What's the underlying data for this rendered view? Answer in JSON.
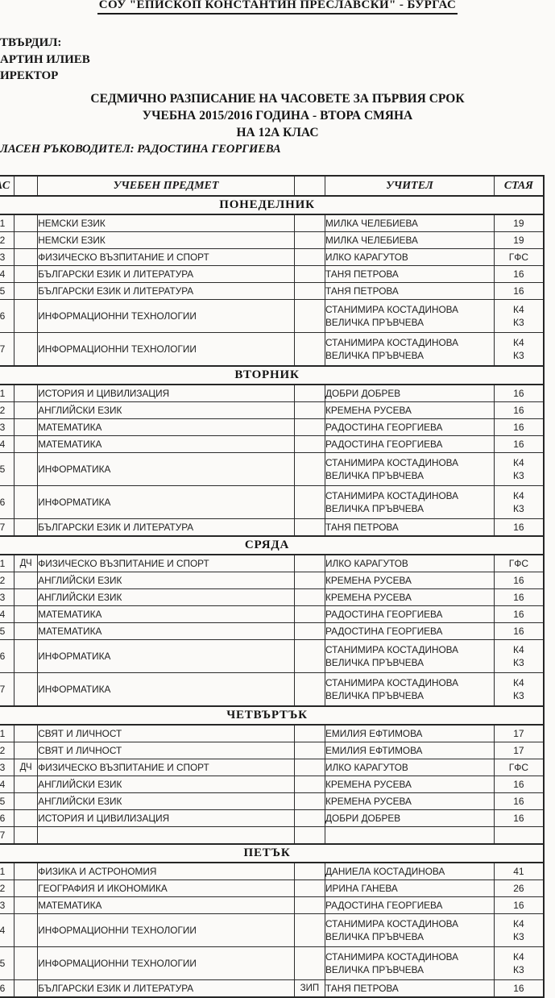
{
  "document": {
    "school_name": "СОУ \"ЕПИСКОП КОНСТАНТИН ПРЕСЛАВСКИ\" - БУРГАС",
    "approved_lines": [
      "ТВЪРДИЛ:",
      "АРТИН ИЛИЕВ",
      "ИРЕКТОР"
    ],
    "title_lines": [
      "СЕДМИЧНО РАЗПИСАНИЕ НА ЧАСОВЕТЕ ЗА ПЪРВИЯ СРОК",
      "УЧЕБНА 2015/2016 ГОДИНА - ВТОРА СМЯНА",
      "НА 12А КЛАС"
    ],
    "class_teacher_line": "ЛАСЕН РЪКОВОДИТЕЛ: РАДОСТИНА ГЕОРГИЕВА"
  },
  "table": {
    "headers": {
      "hour": "АС",
      "marker_left": "",
      "subject": "УЧЕБЕН ПРЕДМЕТ",
      "marker_right": "",
      "teacher": "УЧИТЕЛ",
      "room": "СТАЯ"
    },
    "days": [
      {
        "name": "ПОНЕДЕЛНИК",
        "rows": [
          {
            "hour": "1",
            "marker_left": "",
            "subject": "НЕМСКИ ЕЗИК",
            "marker_right": "",
            "teachers": [
              "МИЛКА ЧЕЛЕБИЕВА"
            ],
            "rooms": [
              "19"
            ]
          },
          {
            "hour": "2",
            "marker_left": "",
            "subject": "НЕМСКИ ЕЗИК",
            "marker_right": "",
            "teachers": [
              "МИЛКА ЧЕЛЕБИЕВА"
            ],
            "rooms": [
              "19"
            ]
          },
          {
            "hour": "3",
            "marker_left": "",
            "subject": "ФИЗИЧЕСКО ВЪЗПИТАНИЕ И СПОРТ",
            "marker_right": "",
            "teachers": [
              "ИЛКО КАРАГУТОВ"
            ],
            "rooms": [
              "ГФС"
            ]
          },
          {
            "hour": "4",
            "marker_left": "",
            "subject": "БЪЛГАРСКИ ЕЗИК И ЛИТЕРАТУРА",
            "marker_right": "",
            "teachers": [
              "ТАНЯ ПЕТРОВА"
            ],
            "rooms": [
              "16"
            ]
          },
          {
            "hour": "5",
            "marker_left": "",
            "subject": "БЪЛГАРСКИ ЕЗИК И ЛИТЕРАТУРА",
            "marker_right": "",
            "teachers": [
              "ТАНЯ ПЕТРОВА"
            ],
            "rooms": [
              "16"
            ]
          },
          {
            "hour": "6",
            "marker_left": "",
            "subject": "ИНФОРМАЦИОННИ ТЕХНОЛОГИИ",
            "marker_right": "",
            "teachers": [
              "СТАНИМИРА КОСТАДИНОВА",
              "ВЕЛИЧКА ПРЪВЧЕВА"
            ],
            "rooms": [
              "К4",
              "К3"
            ]
          },
          {
            "hour": "7",
            "marker_left": "",
            "subject": "ИНФОРМАЦИОННИ ТЕХНОЛОГИИ",
            "marker_right": "",
            "teachers": [
              "СТАНИМИРА КОСТАДИНОВА",
              "ВЕЛИЧКА ПРЪВЧЕВА"
            ],
            "rooms": [
              "К4",
              "К3"
            ]
          }
        ]
      },
      {
        "name": "ВТОРНИК",
        "rows": [
          {
            "hour": "1",
            "marker_left": "",
            "subject": "ИСТОРИЯ И ЦИВИЛИЗАЦИЯ",
            "marker_right": "",
            "teachers": [
              "ДОБРИ ДОБРЕВ"
            ],
            "rooms": [
              "16"
            ]
          },
          {
            "hour": "2",
            "marker_left": "",
            "subject": "АНГЛИЙСКИ ЕЗИК",
            "marker_right": "",
            "teachers": [
              "КРЕМЕНА РУСЕВА"
            ],
            "rooms": [
              "16"
            ]
          },
          {
            "hour": "3",
            "marker_left": "",
            "subject": "МАТЕМАТИКА",
            "marker_right": "",
            "teachers": [
              "РАДОСТИНА ГЕОРГИЕВА"
            ],
            "rooms": [
              "16"
            ]
          },
          {
            "hour": "4",
            "marker_left": "",
            "subject": "МАТЕМАТИКА",
            "marker_right": "",
            "teachers": [
              "РАДОСТИНА ГЕОРГИЕВА"
            ],
            "rooms": [
              "16"
            ]
          },
          {
            "hour": "5",
            "marker_left": "",
            "subject": "ИНФОРМАТИКА",
            "marker_right": "",
            "teachers": [
              "СТАНИМИРА КОСТАДИНОВА",
              "ВЕЛИЧКА ПРЪВЧЕВА"
            ],
            "rooms": [
              "К4",
              "К3"
            ]
          },
          {
            "hour": "6",
            "marker_left": "",
            "subject": "ИНФОРМАТИКА",
            "marker_right": "",
            "teachers": [
              "СТАНИМИРА КОСТАДИНОВА",
              "ВЕЛИЧКА ПРЪВЧЕВА"
            ],
            "rooms": [
              "К4",
              "К3"
            ]
          },
          {
            "hour": "7",
            "marker_left": "",
            "subject": "БЪЛГАРСКИ ЕЗИК И ЛИТЕРАТУРА",
            "marker_right": "",
            "teachers": [
              "ТАНЯ ПЕТРОВА"
            ],
            "rooms": [
              "16"
            ]
          }
        ]
      },
      {
        "name": "СРЯДА",
        "rows": [
          {
            "hour": "1",
            "marker_left": "ДЧ",
            "subject": "ФИЗИЧЕСКО ВЪЗПИТАНИЕ И СПОРТ",
            "marker_right": "",
            "teachers": [
              "ИЛКО КАРАГУТОВ"
            ],
            "rooms": [
              "ГФС"
            ]
          },
          {
            "hour": "2",
            "marker_left": "",
            "subject": "АНГЛИЙСКИ ЕЗИК",
            "marker_right": "",
            "teachers": [
              "КРЕМЕНА РУСЕВА"
            ],
            "rooms": [
              "16"
            ]
          },
          {
            "hour": "3",
            "marker_left": "",
            "subject": "АНГЛИЙСКИ ЕЗИК",
            "marker_right": "",
            "teachers": [
              "КРЕМЕНА РУСЕВА"
            ],
            "rooms": [
              "16"
            ]
          },
          {
            "hour": "4",
            "marker_left": "",
            "subject": "МАТЕМАТИКА",
            "marker_right": "",
            "teachers": [
              "РАДОСТИНА ГЕОРГИЕВА"
            ],
            "rooms": [
              "16"
            ]
          },
          {
            "hour": "5",
            "marker_left": "",
            "subject": "МАТЕМАТИКА",
            "marker_right": "",
            "teachers": [
              "РАДОСТИНА ГЕОРГИЕВА"
            ],
            "rooms": [
              "16"
            ]
          },
          {
            "hour": "6",
            "marker_left": "",
            "subject": "ИНФОРМАТИКА",
            "marker_right": "",
            "teachers": [
              "СТАНИМИРА КОСТАДИНОВА",
              "ВЕЛИЧКА ПРЪВЧЕВА"
            ],
            "rooms": [
              "К4",
              "К3"
            ]
          },
          {
            "hour": "7",
            "marker_left": "",
            "subject": "ИНФОРМАТИКА",
            "marker_right": "",
            "teachers": [
              "СТАНИМИРА КОСТАДИНОВА",
              "ВЕЛИЧКА ПРЪВЧЕВА"
            ],
            "rooms": [
              "К4",
              "К3"
            ]
          }
        ]
      },
      {
        "name": "ЧЕТВЪРТЪК",
        "rows": [
          {
            "hour": "1",
            "marker_left": "",
            "subject": "СВЯТ И ЛИЧНОСТ",
            "marker_right": "",
            "teachers": [
              "ЕМИЛИЯ ЕФТИМОВА"
            ],
            "rooms": [
              "17"
            ]
          },
          {
            "hour": "2",
            "marker_left": "",
            "subject": "СВЯТ И ЛИЧНОСТ",
            "marker_right": "",
            "teachers": [
              "ЕМИЛИЯ ЕФТИМОВА"
            ],
            "rooms": [
              "17"
            ]
          },
          {
            "hour": "3",
            "marker_left": "ДЧ",
            "subject": "ФИЗИЧЕСКО ВЪЗПИТАНИЕ И СПОРТ",
            "marker_right": "",
            "teachers": [
              "ИЛКО КАРАГУТОВ"
            ],
            "rooms": [
              "ГФС"
            ]
          },
          {
            "hour": "4",
            "marker_left": "",
            "subject": "АНГЛИЙСКИ ЕЗИК",
            "marker_right": "",
            "teachers": [
              "КРЕМЕНА РУСЕВА"
            ],
            "rooms": [
              "16"
            ]
          },
          {
            "hour": "5",
            "marker_left": "",
            "subject": "АНГЛИЙСКИ ЕЗИК",
            "marker_right": "",
            "teachers": [
              "КРЕМЕНА РУСЕВА"
            ],
            "rooms": [
              "16"
            ]
          },
          {
            "hour": "6",
            "marker_left": "",
            "subject": "ИСТОРИЯ И ЦИВИЛИЗАЦИЯ",
            "marker_right": "",
            "teachers": [
              "ДОБРИ ДОБРЕВ"
            ],
            "rooms": [
              "16"
            ]
          },
          {
            "hour": "7",
            "marker_left": "",
            "subject": "",
            "marker_right": "",
            "teachers": [],
            "rooms": []
          }
        ]
      },
      {
        "name": "ПЕТЪК",
        "rows": [
          {
            "hour": "1",
            "marker_left": "",
            "subject": "ФИЗИКА И АСТРОНОМИЯ",
            "marker_right": "",
            "teachers": [
              "ДАНИЕЛА КОСТАДИНОВА"
            ],
            "rooms": [
              "41"
            ]
          },
          {
            "hour": "2",
            "marker_left": "",
            "subject": "ГЕОГРАФИЯ И ИКОНОМИКА",
            "marker_right": "",
            "teachers": [
              "ИРИНА ГАНЕВА"
            ],
            "rooms": [
              "26"
            ]
          },
          {
            "hour": "3",
            "marker_left": "",
            "subject": "МАТЕМАТИКА",
            "marker_right": "",
            "teachers": [
              "РАДОСТИНА ГЕОРГИЕВА"
            ],
            "rooms": [
              "16"
            ]
          },
          {
            "hour": "4",
            "marker_left": "",
            "subject": "ИНФОРМАЦИОННИ ТЕХНОЛОГИИ",
            "marker_right": "",
            "teachers": [
              "СТАНИМИРА КОСТАДИНОВА",
              "ВЕЛИЧКА ПРЪВЧЕВА"
            ],
            "rooms": [
              "К4",
              "К3"
            ]
          },
          {
            "hour": "5",
            "marker_left": "",
            "subject": "ИНФОРМАЦИОННИ ТЕХНОЛОГИИ",
            "marker_right": "",
            "teachers": [
              "СТАНИМИРА КОСТАДИНОВА",
              "ВЕЛИЧКА ПРЪВЧЕВА"
            ],
            "rooms": [
              "К4",
              "К3"
            ]
          },
          {
            "hour": "6",
            "marker_left": "",
            "subject": "БЪЛГАРСКИ ЕЗИК И ЛИТЕРАТУРА",
            "marker_right": "ЗИП",
            "teachers": [
              "ТАНЯ ПЕТРОВА"
            ],
            "rooms": [
              "16"
            ]
          }
        ]
      }
    ]
  }
}
